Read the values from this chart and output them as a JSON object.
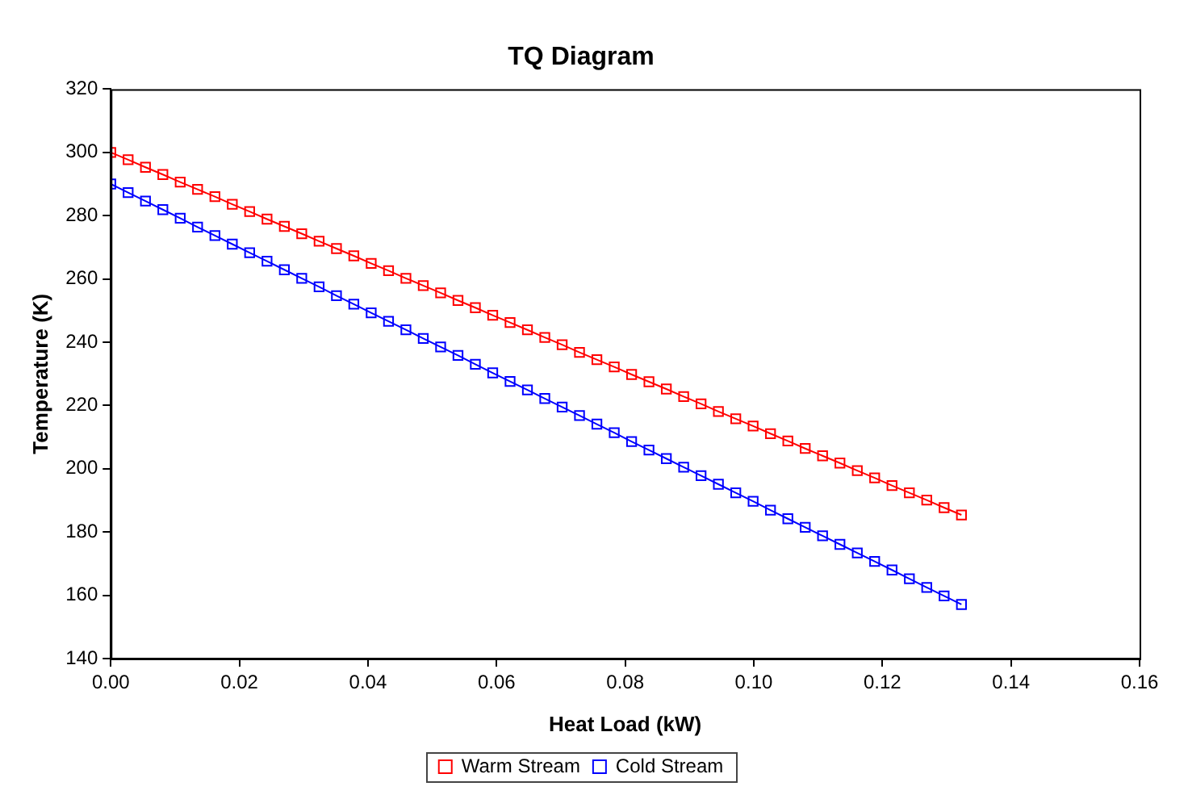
{
  "chart_data": {
    "type": "line",
    "title": "TQ Diagram",
    "xlabel": "Heat Load (kW)",
    "ylabel": "Temperature (K)",
    "x": [
      0,
      0.0027,
      0.0054,
      0.0081,
      0.0108,
      0.0135,
      0.0162,
      0.0189,
      0.0216,
      0.0243,
      0.027,
      0.0297,
      0.0324,
      0.0351,
      0.0378,
      0.0405,
      0.0432,
      0.0459,
      0.0486,
      0.0513,
      0.054,
      0.0567,
      0.0594,
      0.0621,
      0.0648,
      0.0675,
      0.0702,
      0.0729,
      0.0756,
      0.0783,
      0.081,
      0.0837,
      0.0864,
      0.0891,
      0.0918,
      0.0945,
      0.0972,
      0.0999,
      0.1026,
      0.1053,
      0.108,
      0.1107,
      0.1134,
      0.1161,
      0.1188,
      0.1215,
      0.1242,
      0.1269,
      0.1296,
      0.1323
    ],
    "series": [
      {
        "name": "Warm Stream",
        "color": "#ff0000",
        "values": [
          300.0,
          297.7,
          295.3,
          293.0,
          290.6,
          288.3,
          286.0,
          283.6,
          281.3,
          278.9,
          276.6,
          274.3,
          271.9,
          269.6,
          267.3,
          264.9,
          262.6,
          260.2,
          257.9,
          255.6,
          253.2,
          250.9,
          248.5,
          246.2,
          243.9,
          241.5,
          239.2,
          236.8,
          234.5,
          232.2,
          229.8,
          227.5,
          225.2,
          222.8,
          220.5,
          218.1,
          215.8,
          213.5,
          211.1,
          208.8,
          206.4,
          204.1,
          201.8,
          199.4,
          197.1,
          194.7,
          192.4,
          190.1,
          187.7,
          185.4
        ]
      },
      {
        "name": "Cold Stream",
        "color": "#0000ff",
        "values": [
          290.0,
          287.3,
          284.6,
          281.9,
          279.2,
          276.4,
          273.7,
          271.0,
          268.3,
          265.6,
          262.9,
          260.2,
          257.5,
          254.7,
          252.0,
          249.3,
          246.6,
          243.9,
          241.2,
          238.5,
          235.8,
          233.0,
          230.3,
          227.6,
          224.9,
          222.2,
          219.5,
          216.8,
          214.1,
          211.4,
          208.6,
          205.9,
          203.2,
          200.5,
          197.8,
          195.1,
          192.4,
          189.7,
          186.9,
          184.2,
          181.5,
          178.8,
          176.1,
          173.4,
          170.7,
          168.0,
          165.2,
          162.5,
          159.8,
          157.1
        ]
      }
    ],
    "xlim": [
      0,
      0.16
    ],
    "xticks": [
      {
        "value": 0,
        "label": "0.00"
      },
      {
        "value": 0.02,
        "label": "0.02"
      },
      {
        "value": 0.04,
        "label": "0.04"
      },
      {
        "value": 0.06,
        "label": "0.06"
      },
      {
        "value": 0.08,
        "label": "0.08"
      },
      {
        "value": 0.1,
        "label": "0.10"
      },
      {
        "value": 0.12,
        "label": "0.12"
      },
      {
        "value": 0.14,
        "label": "0.14"
      },
      {
        "value": 0.16,
        "label": "0.16"
      }
    ],
    "ylim": [
      140,
      320
    ],
    "yticks": [
      140,
      160,
      180,
      200,
      220,
      240,
      260,
      280,
      300,
      320
    ],
    "grid": false,
    "legend": "bottom",
    "marker": "square",
    "line_style": "solid"
  }
}
